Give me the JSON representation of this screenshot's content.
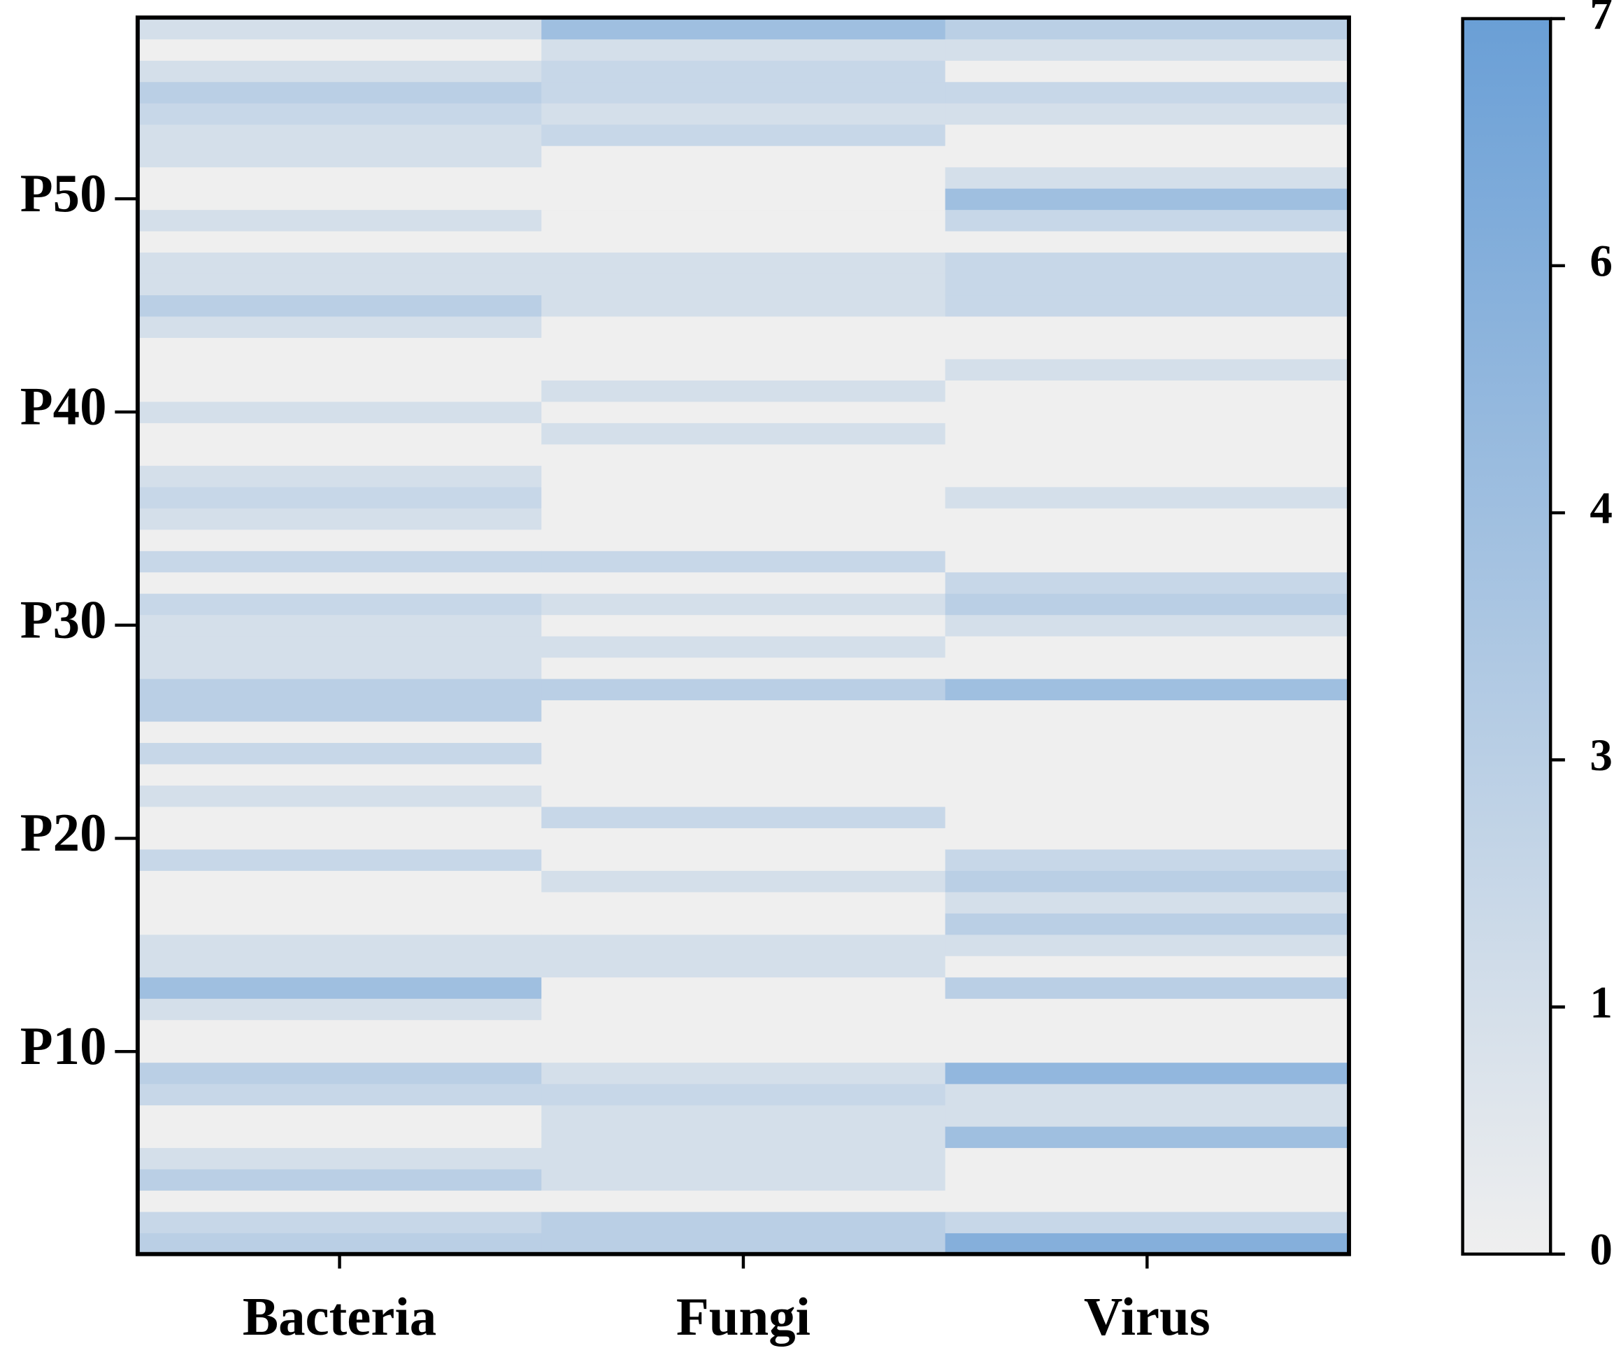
{
  "chart_data": {
    "type": "heatmap",
    "y_categories": [
      null,
      null,
      null,
      null,
      null,
      null,
      null,
      null,
      null,
      "P10",
      null,
      null,
      null,
      null,
      null,
      null,
      null,
      null,
      null,
      "P20",
      null,
      null,
      null,
      null,
      null,
      null,
      null,
      null,
      null,
      "P30",
      null,
      null,
      null,
      null,
      null,
      null,
      null,
      null,
      null,
      "P40",
      null,
      null,
      null,
      null,
      null,
      null,
      null,
      null,
      null,
      "P50",
      null,
      null,
      null,
      null,
      null,
      null,
      null,
      null
    ],
    "series": [
      {
        "name": "Bacteria",
        "values": [
          3,
          2,
          0,
          3,
          1,
          0,
          0,
          2,
          3,
          0,
          0,
          1,
          4,
          1,
          1,
          0,
          0,
          0,
          2,
          0,
          0,
          1,
          0,
          2,
          0,
          3,
          3,
          1,
          1,
          1,
          2,
          0,
          2,
          0,
          1,
          2,
          1,
          0,
          0,
          1,
          0,
          0,
          0,
          1,
          3,
          1,
          1,
          0,
          1,
          0,
          0,
          1,
          1,
          2,
          3,
          1,
          0,
          1
        ]
      },
      {
        "name": "Fungi",
        "values": [
          3,
          3,
          0,
          1,
          1,
          1,
          1,
          2,
          1,
          0,
          0,
          0,
          0,
          1,
          1,
          0,
          0,
          1,
          0,
          0,
          2,
          0,
          0,
          0,
          0,
          0,
          3,
          0,
          1,
          0,
          1,
          0,
          2,
          0,
          0,
          0,
          0,
          0,
          1,
          0,
          1,
          0,
          0,
          0,
          1,
          1,
          1,
          0,
          0,
          0,
          0,
          0,
          2,
          1,
          2,
          2,
          1,
          4
        ]
      },
      {
        "name": "Virus",
        "values": [
          6,
          2,
          0,
          0,
          0,
          4,
          1,
          1,
          5,
          0,
          0,
          0,
          3,
          0,
          1,
          3,
          1,
          3,
          2,
          0,
          0,
          0,
          0,
          0,
          0,
          0,
          4,
          0,
          0,
          1,
          3,
          2,
          0,
          0,
          0,
          1,
          0,
          0,
          0,
          0,
          0,
          1,
          0,
          0,
          2,
          2,
          2,
          0,
          2,
          4,
          1,
          0,
          0,
          1,
          2,
          0,
          1,
          3
        ]
      }
    ],
    "colormap": [
      "#efefef",
      "#6a9fd6"
    ],
    "colorbar_ticks": [
      0,
      1,
      3,
      4,
      6,
      7
    ]
  }
}
